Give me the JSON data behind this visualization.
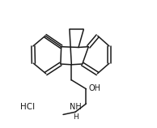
{
  "background_color": "#ffffff",
  "line_color": "#1a1a1a",
  "line_width": 1.1,
  "figsize": [
    1.94,
    1.58
  ],
  "dpi": 100,
  "font_size": 7.0,
  "HCl_text": "HCl",
  "OH_text": "OH",
  "NH_text": "NH",
  "H_text": "H"
}
